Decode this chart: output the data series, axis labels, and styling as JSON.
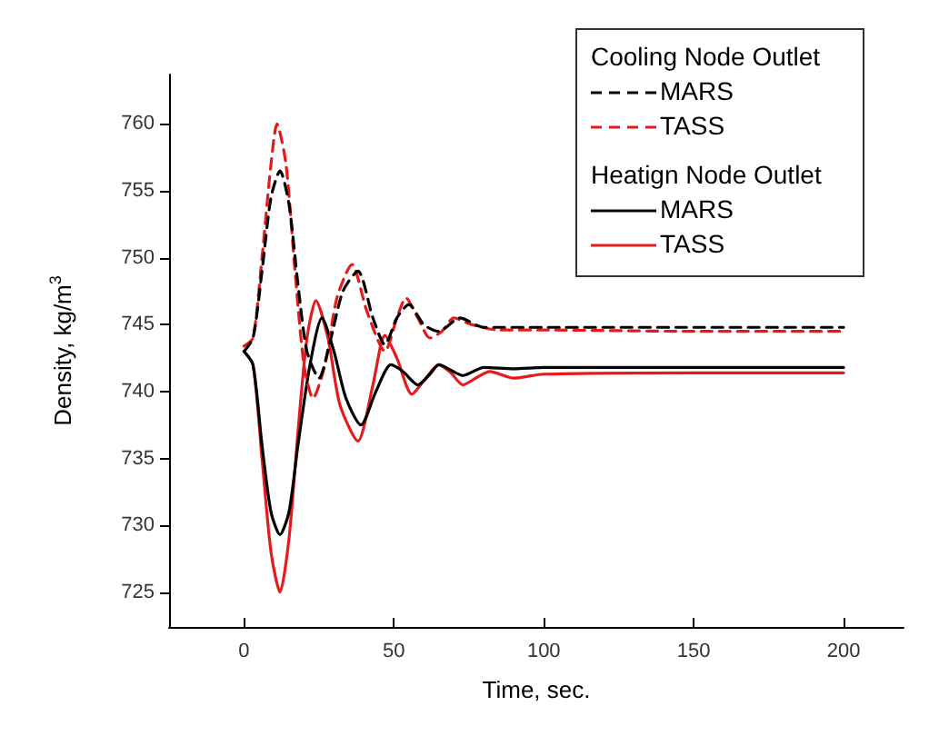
{
  "chart_data": {
    "type": "line",
    "xlabel": "Time, sec.",
    "ylabel": "Density, kg/m$^{3}$",
    "xlim": [
      -25,
      220
    ],
    "xticks": [
      0,
      50,
      100,
      150,
      200
    ],
    "ylim": [
      722.4,
      763.7
    ],
    "yticks": [
      725,
      730,
      735,
      740,
      745,
      750,
      755,
      760
    ],
    "grid": false,
    "legend": "top right",
    "marker": "none",
    "annotations": [
      "Cooling Node Outlet",
      "Heatign Node Outlet"
    ],
    "series": [
      {
        "name": "MARS",
        "color": "#000000",
        "line_style": "dashed",
        "x": [
          0,
          3,
          6,
          9,
          12,
          15,
          18,
          21,
          25,
          29,
          33,
          38,
          43,
          47,
          51,
          55,
          60,
          65,
          72,
          80,
          100,
          150,
          200
        ],
        "values": [
          743,
          744,
          749,
          754.5,
          756.5,
          754,
          748,
          743,
          741,
          744,
          747.5,
          749,
          745.5,
          743.5,
          745.5,
          746.5,
          745,
          744.5,
          745.5,
          744.8,
          744.8,
          744.8,
          744.8
        ]
      },
      {
        "name": "TASS",
        "color": "#e41a1c",
        "line_style": "dashed",
        "x": [
          0,
          3,
          6,
          9,
          11,
          14,
          17,
          20,
          23,
          27,
          31,
          36,
          41,
          47,
          51,
          54,
          58,
          62,
          66,
          70,
          76,
          85,
          100,
          150,
          200
        ],
        "values": [
          743.4,
          744,
          750,
          757,
          760,
          757,
          749,
          742,
          739.5,
          742,
          747,
          749.5,
          746,
          743,
          745.5,
          747,
          745.5,
          744,
          744.5,
          745.5,
          745,
          744.6,
          744.6,
          744.5,
          744.5
        ]
      },
      {
        "name": "MARS",
        "color": "#000000",
        "line_style": "solid",
        "x": [
          0,
          3,
          6,
          9,
          12,
          15,
          18,
          22,
          26,
          30,
          34,
          39,
          44,
          49,
          53,
          58,
          62,
          65,
          69,
          73,
          80,
          90,
          100,
          150,
          200
        ],
        "values": [
          743,
          742,
          736,
          731,
          729.3,
          731,
          736,
          742,
          745.5,
          743,
          739.5,
          737.5,
          740,
          742,
          741.5,
          740.5,
          741.3,
          742,
          741.6,
          741.2,
          741.8,
          741.7,
          741.8,
          741.8,
          741.8
        ]
      },
      {
        "name": "TASS",
        "color": "#e41a1c",
        "line_style": "solid",
        "x": [
          0,
          3,
          6,
          9,
          12,
          15,
          18,
          21,
          24,
          28,
          32,
          38,
          43,
          47,
          51,
          56,
          60,
          65,
          69,
          73,
          78,
          82,
          90,
          100,
          150,
          200
        ],
        "values": [
          743,
          742,
          735,
          728,
          725,
          729,
          737,
          744,
          746.8,
          744,
          739,
          736.3,
          740.5,
          744.2,
          742.5,
          739.8,
          740.8,
          742,
          741.4,
          740.5,
          741.1,
          741.5,
          741,
          741.3,
          741.4,
          741.4
        ]
      }
    ]
  }
}
